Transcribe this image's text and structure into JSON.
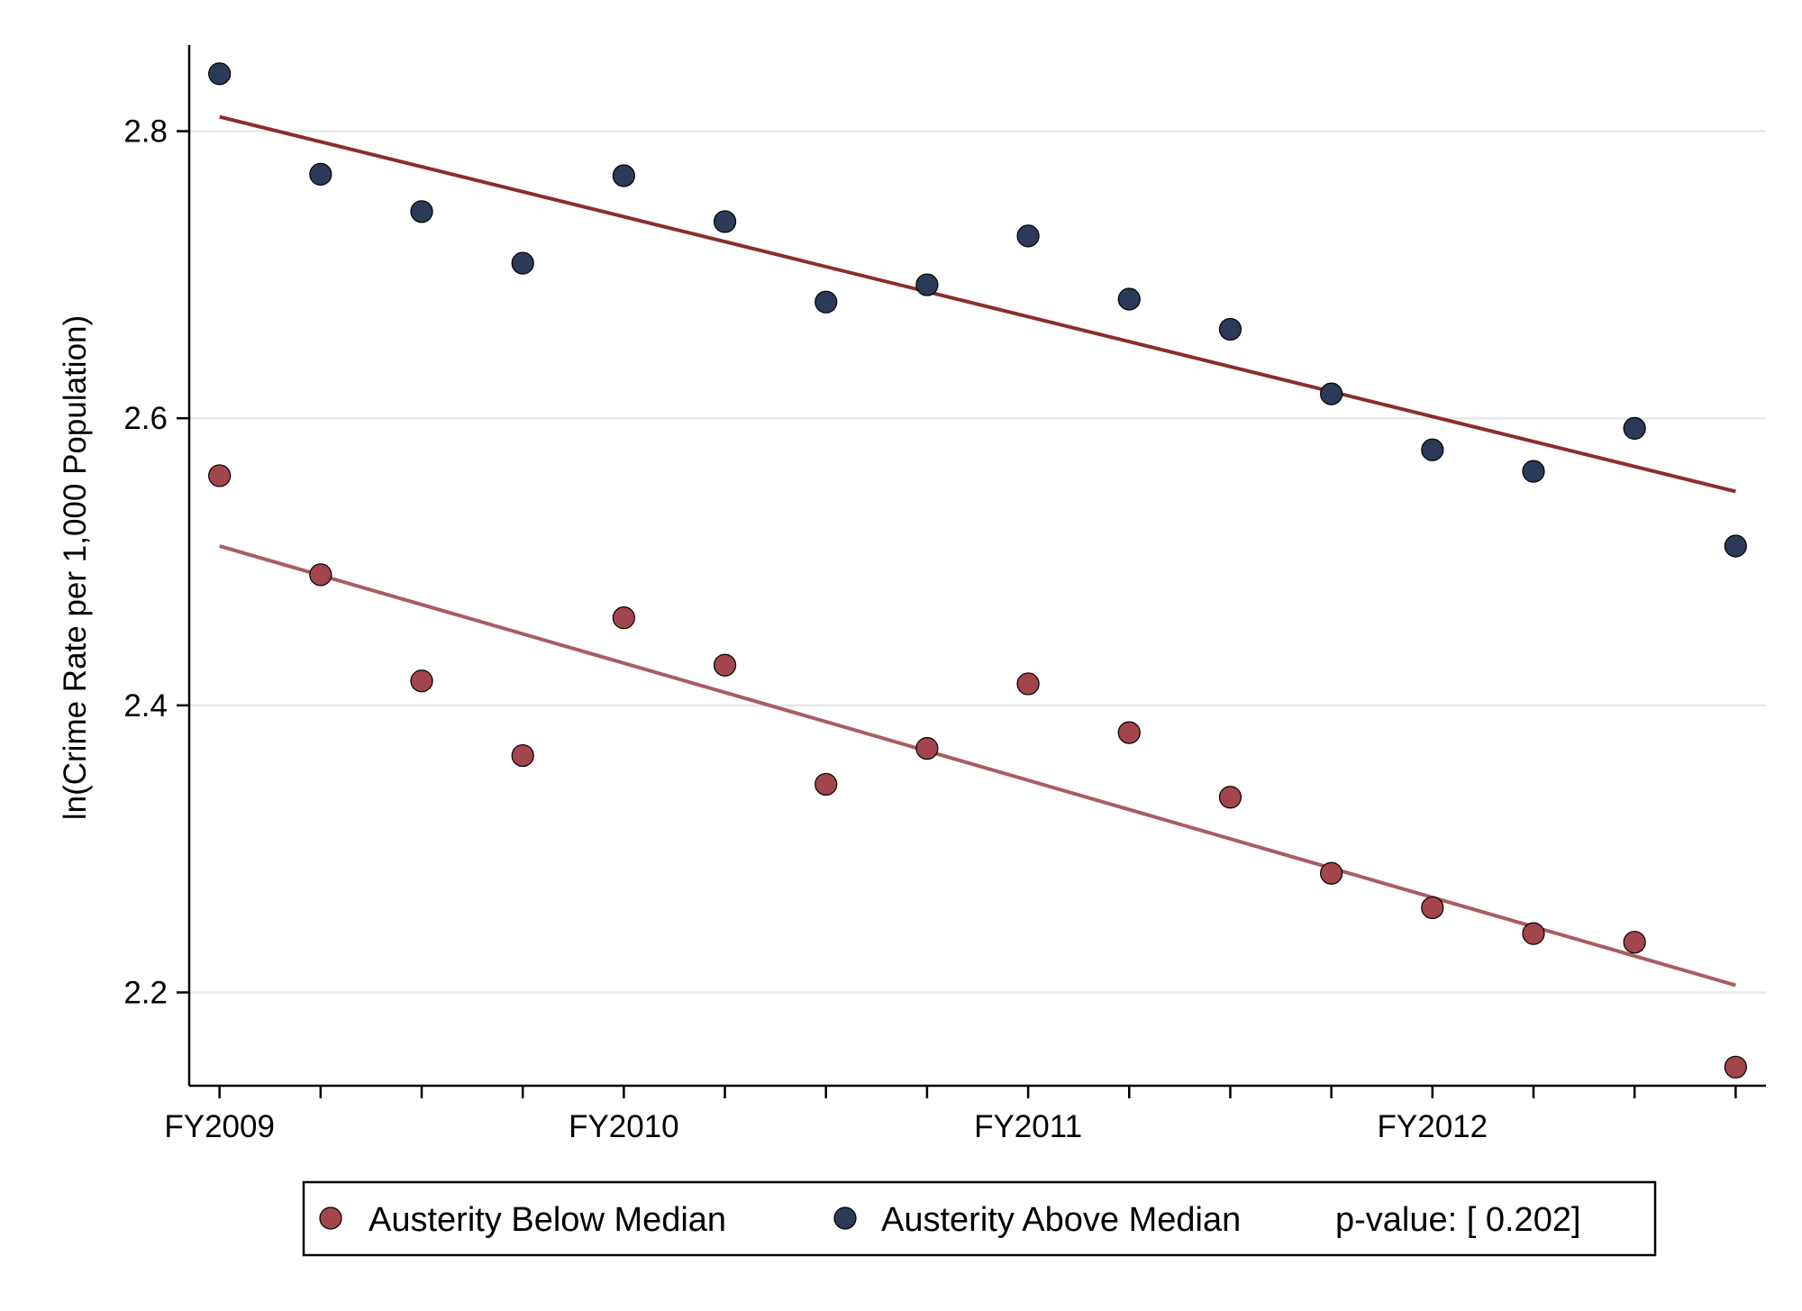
{
  "chart_data": {
    "type": "scatter",
    "title": "",
    "xlabel": "",
    "ylabel": "ln(Crime Rate per 1,000 Population)",
    "xlim": [
      -0.3,
      15.3
    ],
    "ylim": [
      2.135,
      2.86
    ],
    "x_ticks": [
      0,
      1,
      2,
      3,
      4,
      5,
      6,
      7,
      8,
      9,
      10,
      11,
      12,
      13,
      14,
      15
    ],
    "x_tick_labels": [
      {
        "x": 0,
        "label": "FY2009"
      },
      {
        "x": 4,
        "label": "FY2010"
      },
      {
        "x": 8,
        "label": "FY2011"
      },
      {
        "x": 12,
        "label": "FY2012"
      }
    ],
    "y_ticks": [
      {
        "value": 2.2,
        "label": "2.2"
      },
      {
        "value": 2.4,
        "label": "2.4"
      },
      {
        "value": 2.6,
        "label": "2.6"
      },
      {
        "value": 2.8,
        "label": "2.8"
      }
    ],
    "grid": "horizontal",
    "series": [
      {
        "name": "Austerity Below Median",
        "marker_color": "#a3454d",
        "line_color": "#a85d5f",
        "x": [
          0,
          1,
          2,
          3,
          4,
          5,
          6,
          7,
          8,
          9,
          10,
          11,
          12,
          13,
          14,
          15
        ],
        "values": [
          2.56,
          2.491,
          2.417,
          2.365,
          2.461,
          2.428,
          2.345,
          2.37,
          2.415,
          2.381,
          2.336,
          2.283,
          2.259,
          2.241,
          2.235,
          2.148
        ],
        "fit": [
          2.511,
          2.205
        ]
      },
      {
        "name": "Austerity Above Median",
        "marker_color": "#2b3a59",
        "line_color": "#8b2d2d",
        "x": [
          0,
          1,
          2,
          3,
          4,
          5,
          6,
          7,
          8,
          9,
          10,
          11,
          12,
          13,
          14,
          15
        ],
        "values": [
          2.84,
          2.77,
          2.744,
          2.708,
          2.769,
          2.737,
          2.681,
          2.693,
          2.727,
          2.683,
          2.662,
          2.617,
          2.578,
          2.563,
          2.593,
          2.511
        ],
        "fit": [
          2.81,
          2.549
        ]
      }
    ],
    "legend": {
      "placement": "bottom",
      "entries": [
        "Austerity Below Median",
        "Austerity Above Median"
      ],
      "note": "p-value: [ 0.202]"
    },
    "colors": {
      "grid": "#e3ebeb",
      "axis": "#000000"
    }
  }
}
